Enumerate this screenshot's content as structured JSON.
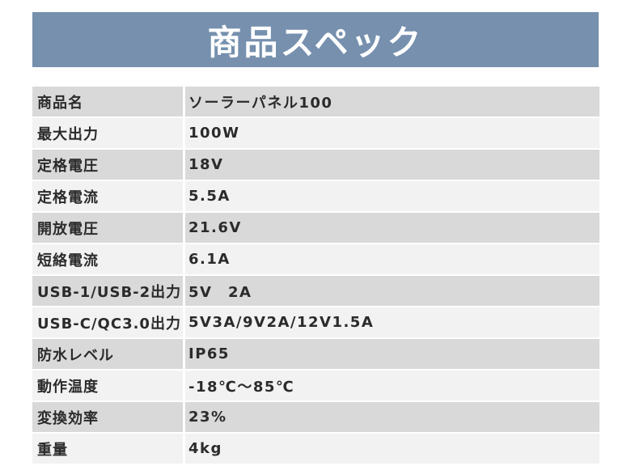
{
  "header": {
    "title": "商品スペック",
    "band_color": "#7690ae"
  },
  "specs": [
    {
      "label": "商品名",
      "value": "ソーラーパネル100"
    },
    {
      "label": "最大出力",
      "value": "100W"
    },
    {
      "label": "定格電圧",
      "value": "18V"
    },
    {
      "label": "定格電流",
      "value": "5.5A"
    },
    {
      "label": "開放電圧",
      "value": "21.6V"
    },
    {
      "label": "短絡電流",
      "value": "6.1A"
    },
    {
      "label": "USB-1/USB-2出力",
      "value": "5V　2A"
    },
    {
      "label": "USB-C/QC3.0出力",
      "value": "5V3A/9V2A/12V1.5A"
    },
    {
      "label": "防水レベル",
      "value": "IP65"
    },
    {
      "label": "動作温度",
      "value": "-18℃～85℃"
    },
    {
      "label": "変換効率",
      "value": "23%"
    },
    {
      "label": "重量",
      "value": "4kg"
    }
  ]
}
